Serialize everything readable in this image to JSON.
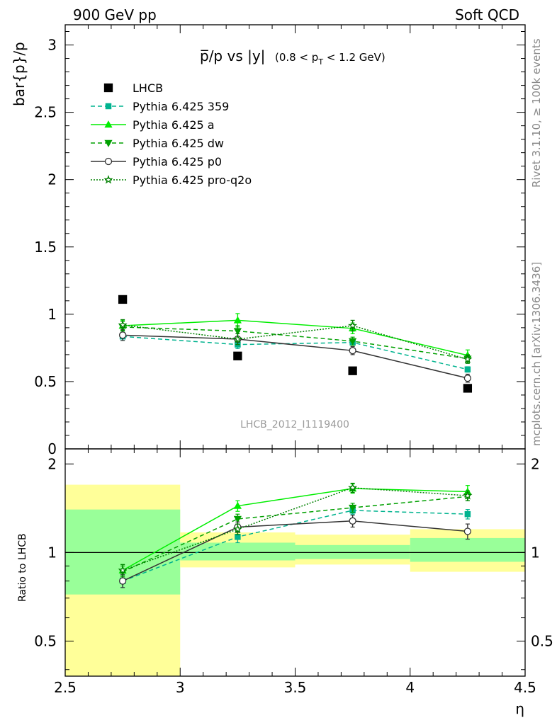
{
  "header": {
    "left": "900 GeV pp",
    "right": "Soft QCD"
  },
  "side_labels": {
    "rivet": "Rivet 3.1.10, ≥ 100k events",
    "mcplots": "mcplots.cern.ch [arXiv:1306.3436]"
  },
  "colors": {
    "lhcb": "#000000",
    "p359": "#00b38f",
    "pa": "#00ee00",
    "pdw": "#00a000",
    "pp0": "#333333",
    "pq2o": "#008000",
    "band_inner": "#99ff99",
    "band_outer": "#ffff99"
  },
  "chart_data": {
    "type": "line",
    "title_main": "p̅/p vs |y|",
    "title_cut_pre": "(0.8 < p",
    "title_cut_sub": "T",
    "title_cut_post": " < 1.2 GeV)",
    "watermark": "LHCB_2012_I1119400",
    "ylabel": "bar{p}/p",
    "xlabel": "η",
    "xlim": [
      2.5,
      4.5
    ],
    "ylim": [
      0,
      3.15
    ],
    "x_ticks": [
      "2.5",
      "3",
      "3.5",
      "4",
      "4.5"
    ],
    "y_ticks": [
      "0",
      "0.5",
      "1",
      "1.5",
      "2",
      "2.5",
      "3"
    ],
    "bins": [
      [
        2.5,
        3.0
      ],
      [
        3.0,
        3.5
      ],
      [
        3.5,
        4.0
      ],
      [
        4.0,
        4.5
      ]
    ],
    "x": [
      2.75,
      3.25,
      3.75,
      4.25
    ],
    "lhcb": {
      "name": "LHCB",
      "values": [
        1.11,
        0.69,
        0.58,
        0.45
      ]
    },
    "series": [
      {
        "key": "p359",
        "name": "Pythia 6.425 359",
        "values": [
          0.835,
          0.775,
          0.79,
          0.59
        ],
        "err": [
          0.03,
          0.03,
          0.02,
          0.02
        ]
      },
      {
        "key": "pa",
        "name": "Pythia 6.425 a",
        "values": [
          0.915,
          0.955,
          0.895,
          0.695
        ],
        "err": [
          0.04,
          0.05,
          0.04,
          0.04
        ]
      },
      {
        "key": "pdw",
        "name": "Pythia 6.425 dw",
        "values": [
          0.905,
          0.875,
          0.8,
          0.67
        ],
        "err": [
          0.04,
          0.04,
          0.03,
          0.03
        ]
      },
      {
        "key": "pp0",
        "name": "Pythia 6.425 p0",
        "values": [
          0.845,
          0.815,
          0.73,
          0.525
        ],
        "err": [
          0.04,
          0.04,
          0.03,
          0.03
        ]
      },
      {
        "key": "pq2o",
        "name": "Pythia 6.425 pro-q2o",
        "values": [
          0.92,
          0.815,
          0.915,
          0.665
        ],
        "err": [
          0.04,
          0.04,
          0.04,
          0.03
        ]
      }
    ],
    "ratio": {
      "ylabel": "Ratio to LHCB",
      "ylim": [
        0.38,
        2.25
      ],
      "y_ticks": [
        "0.5",
        "1",
        "2"
      ],
      "tick_values": [
        0.5,
        1,
        2
      ],
      "band_inner": [
        [
          0.72,
          1.4
        ],
        [
          0.94,
          1.08
        ],
        [
          0.95,
          1.06
        ],
        [
          0.93,
          1.12
        ]
      ],
      "band_outer": [
        [
          0.38,
          1.7
        ],
        [
          0.89,
          1.17
        ],
        [
          0.91,
          1.15
        ],
        [
          0.86,
          1.2
        ]
      ],
      "series": [
        {
          "key": "p359",
          "values": [
            0.8,
            1.13,
            1.39,
            1.35
          ],
          "err": [
            0.04,
            0.05,
            0.04,
            0.05
          ]
        },
        {
          "key": "pa",
          "values": [
            0.87,
            1.44,
            1.65,
            1.61
          ],
          "err": [
            0.04,
            0.06,
            0.06,
            0.08
          ]
        },
        {
          "key": "pdw",
          "values": [
            0.86,
            1.3,
            1.42,
            1.55
          ],
          "err": [
            0.04,
            0.05,
            0.05,
            0.05
          ]
        },
        {
          "key": "pp0",
          "values": [
            0.8,
            1.22,
            1.28,
            1.18
          ],
          "err": [
            0.04,
            0.05,
            0.06,
            0.07
          ]
        },
        {
          "key": "pq2o",
          "values": [
            0.87,
            1.2,
            1.66,
            1.56
          ],
          "err": [
            0.04,
            0.05,
            0.06,
            0.06
          ]
        }
      ]
    }
  }
}
